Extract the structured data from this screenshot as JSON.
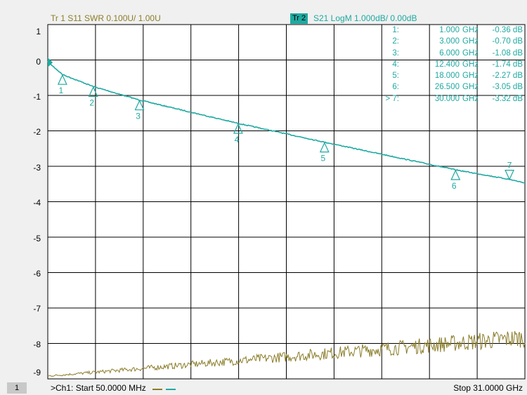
{
  "colors": {
    "s11_trace": "#8b7d2a",
    "s21_trace": "#1fa9a1",
    "grid": "#000000",
    "plot_bg": "#ffffff"
  },
  "header": {
    "tr1": "Tr 1  S11 SWR 0.100U/  1.00U",
    "tr2_badge": "Tr 2",
    "tr2": "S21 LogM 1.000dB/  0.00dB"
  },
  "y_axis_labels": [
    "1",
    "0",
    "-1",
    "-2",
    "-3",
    "-4",
    "-5",
    "-6",
    "-7",
    "-8",
    "-9"
  ],
  "markers": [
    {
      "id": "1:",
      "freq": "1.000",
      "unit": "GHz",
      "value": "-0.36 dB"
    },
    {
      "id": "2:",
      "freq": "3.000",
      "unit": "GHz",
      "value": "-0.70 dB"
    },
    {
      "id": "3:",
      "freq": "6.000",
      "unit": "GHz",
      "value": "-1.08 dB"
    },
    {
      "id": "4:",
      "freq": "12.400",
      "unit": "GHz",
      "value": "-1.74 dB"
    },
    {
      "id": "5:",
      "freq": "18.000",
      "unit": "GHz",
      "value": "-2.27 dB"
    },
    {
      "id": "6:",
      "freq": "26.500",
      "unit": "GHz",
      "value": "-3.05 dB"
    },
    {
      "id": "> 7:",
      "freq": "30.000",
      "unit": "GHz",
      "value": "-3.32 dB"
    }
  ],
  "marker_labels": [
    "1",
    "2",
    "3",
    "4",
    "5",
    "6",
    "7"
  ],
  "footer": {
    "channel": "1",
    "start": ">Ch1:  Start  50.0000 MHz",
    "stop": "Stop  31.0000 GHz"
  }
}
